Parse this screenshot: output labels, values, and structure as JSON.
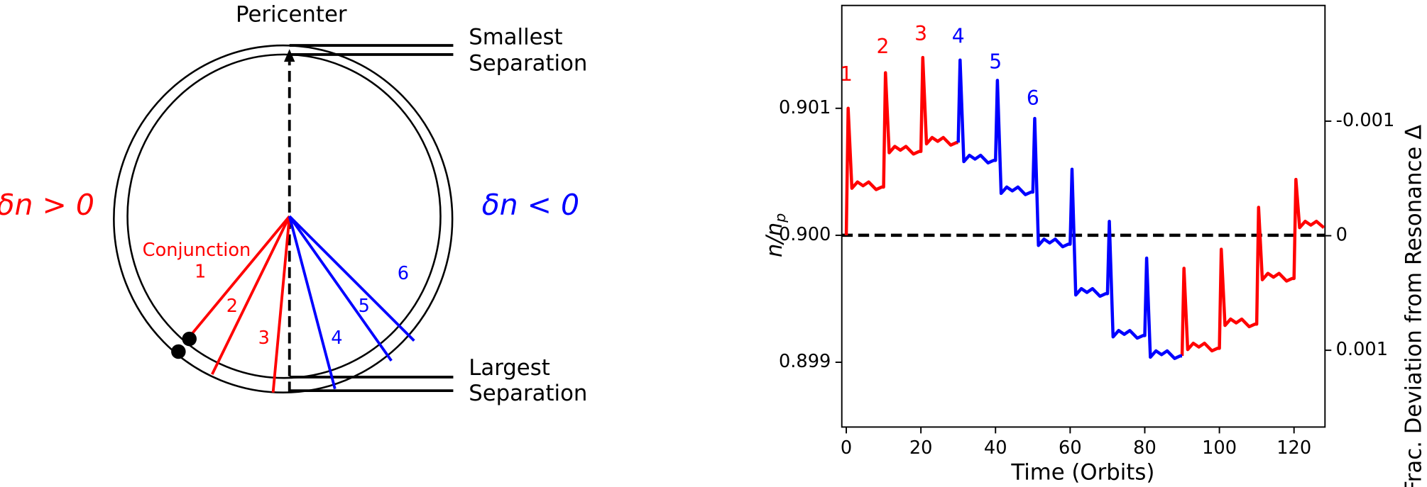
{
  "diagram": {
    "pericenter": "Pericenter",
    "smallest": [
      "Smallest",
      "Separation"
    ],
    "largest": [
      "Largest",
      "Separation"
    ],
    "left_label": "δn > 0",
    "right_label": "δn < 0",
    "conjunction": "Conjunction",
    "conjunction_numbers": [
      "1",
      "2",
      "3",
      "4",
      "5",
      "6"
    ]
  },
  "chart_data": {
    "type": "line",
    "xlabel": "Time (Orbits)",
    "ylabel": "n/n",
    "ylabel_subscript": "p",
    "y2label": "Frac. Deviation from Resonance Δ",
    "xlim": [
      -1.2,
      128.3
    ],
    "ylim": [
      0.89849,
      0.90181
    ],
    "y2lim": [
      0.00167,
      -0.00201
    ],
    "xticks": [
      0,
      20,
      40,
      60,
      80,
      100,
      120
    ],
    "yticks": [
      0.899,
      {
        "value": 0.9,
        "label": "0.900"
      },
      0.901
    ],
    "y2ticks": [
      0.001,
      0,
      -0.001
    ],
    "hline": {
      "y": 0.9,
      "color": "#000000",
      "dashed": true
    },
    "x": [
      0,
      0.5,
      1.5,
      3,
      4.5,
      6,
      8,
      9.5,
      10,
      10.5,
      11.5,
      13,
      14.5,
      16,
      18,
      19.5,
      20,
      20.5,
      21.5,
      23,
      24.5,
      26,
      28,
      29.5,
      30,
      30.5,
      31.5,
      33,
      34.5,
      36,
      38,
      39.5,
      40,
      40.5,
      41.5,
      43,
      44.5,
      46,
      48,
      49.5,
      50,
      50.5,
      51.5,
      53,
      54.5,
      56,
      58,
      59.5,
      60,
      60.5,
      61.5,
      63,
      64.5,
      66,
      68,
      69.5,
      70,
      70.5,
      71.5,
      73,
      74.5,
      76,
      78,
      79.5,
      80,
      80.5,
      81.5,
      83,
      84.5,
      86,
      88,
      89.5,
      90,
      90.5,
      91.5,
      93,
      94.5,
      96,
      98,
      99.5,
      100,
      100.5,
      101.5,
      103,
      104.5,
      106,
      108,
      109.5,
      110,
      110.5,
      111.5,
      113,
      114.5,
      116,
      118,
      119.5,
      120,
      120.5,
      121.5,
      123,
      124.5,
      126,
      128
    ],
    "series": [
      {
        "name": "δn > 0",
        "color": "#ff0000",
        "values": [
          0.9,
          0.901,
          0.90037,
          0.90042,
          0.90039,
          0.90042,
          0.90036,
          0.90038,
          0.90038,
          0.90128,
          0.90065,
          0.9007,
          0.90067,
          0.9007,
          0.90064,
          0.90066,
          0.90066,
          0.9014,
          0.90072,
          0.90077,
          0.90074,
          0.90077,
          0.90071,
          0.90073,
          0.90073,
          null,
          null,
          null,
          null,
          null,
          null,
          null,
          null,
          null,
          null,
          null,
          null,
          null,
          null,
          null,
          null,
          null,
          null,
          null,
          null,
          null,
          null,
          null,
          null,
          null,
          null,
          null,
          null,
          null,
          null,
          null,
          null,
          null,
          null,
          null,
          null,
          null,
          null,
          null,
          null,
          null,
          null,
          null,
          null,
          null,
          null,
          null,
          0.89905,
          0.89974,
          0.8991,
          0.89915,
          0.89912,
          0.89915,
          0.89909,
          0.89911,
          0.89911,
          0.89989,
          0.89929,
          0.89934,
          0.89931,
          0.89934,
          0.89928,
          0.8993,
          0.8993,
          0.90022,
          0.89965,
          0.8997,
          0.89967,
          0.8997,
          0.89964,
          0.89966,
          0.89966,
          0.90044,
          0.90006,
          0.90011,
          0.90008,
          0.90011,
          0.90006
        ]
      },
      {
        "name": "δn < 0",
        "color": "#0000ff",
        "values": [
          null,
          null,
          null,
          null,
          null,
          null,
          null,
          null,
          null,
          null,
          null,
          null,
          null,
          null,
          null,
          null,
          null,
          null,
          null,
          null,
          null,
          null,
          null,
          null,
          0.90073,
          0.90138,
          0.90058,
          0.90063,
          0.9006,
          0.90063,
          0.90057,
          0.90059,
          0.90059,
          0.90122,
          0.90033,
          0.90038,
          0.90035,
          0.90038,
          0.90032,
          0.90034,
          0.90034,
          0.90092,
          0.89992,
          0.89997,
          0.89994,
          0.89997,
          0.89991,
          0.89993,
          0.89993,
          0.90052,
          0.89953,
          0.89958,
          0.89955,
          0.89958,
          0.89952,
          0.89954,
          0.89954,
          0.90011,
          0.8992,
          0.89925,
          0.89922,
          0.89925,
          0.89919,
          0.89921,
          0.89921,
          0.89982,
          0.89904,
          0.89909,
          0.89906,
          0.89909,
          0.89903,
          0.89905,
          0.89905,
          null,
          null,
          null,
          null,
          null,
          null,
          null,
          null,
          null,
          null,
          null,
          null,
          null,
          null,
          null,
          null,
          null,
          null,
          null,
          null,
          null,
          null,
          null,
          null,
          null,
          null,
          null,
          null,
          null,
          null
        ]
      }
    ],
    "annotations": [
      {
        "text": "1",
        "x": 0,
        "y": 0.90126,
        "color": "#ff0000"
      },
      {
        "text": "2",
        "x": 9.8,
        "y": 0.90148,
        "color": "#ff0000"
      },
      {
        "text": "3",
        "x": 20,
        "y": 0.90158,
        "color": "#ff0000"
      },
      {
        "text": "4",
        "x": 30,
        "y": 0.90156,
        "color": "#0000ff"
      },
      {
        "text": "5",
        "x": 40,
        "y": 0.90136,
        "color": "#0000ff"
      },
      {
        "text": "6",
        "x": 50,
        "y": 0.90107,
        "color": "#0000ff"
      }
    ]
  }
}
